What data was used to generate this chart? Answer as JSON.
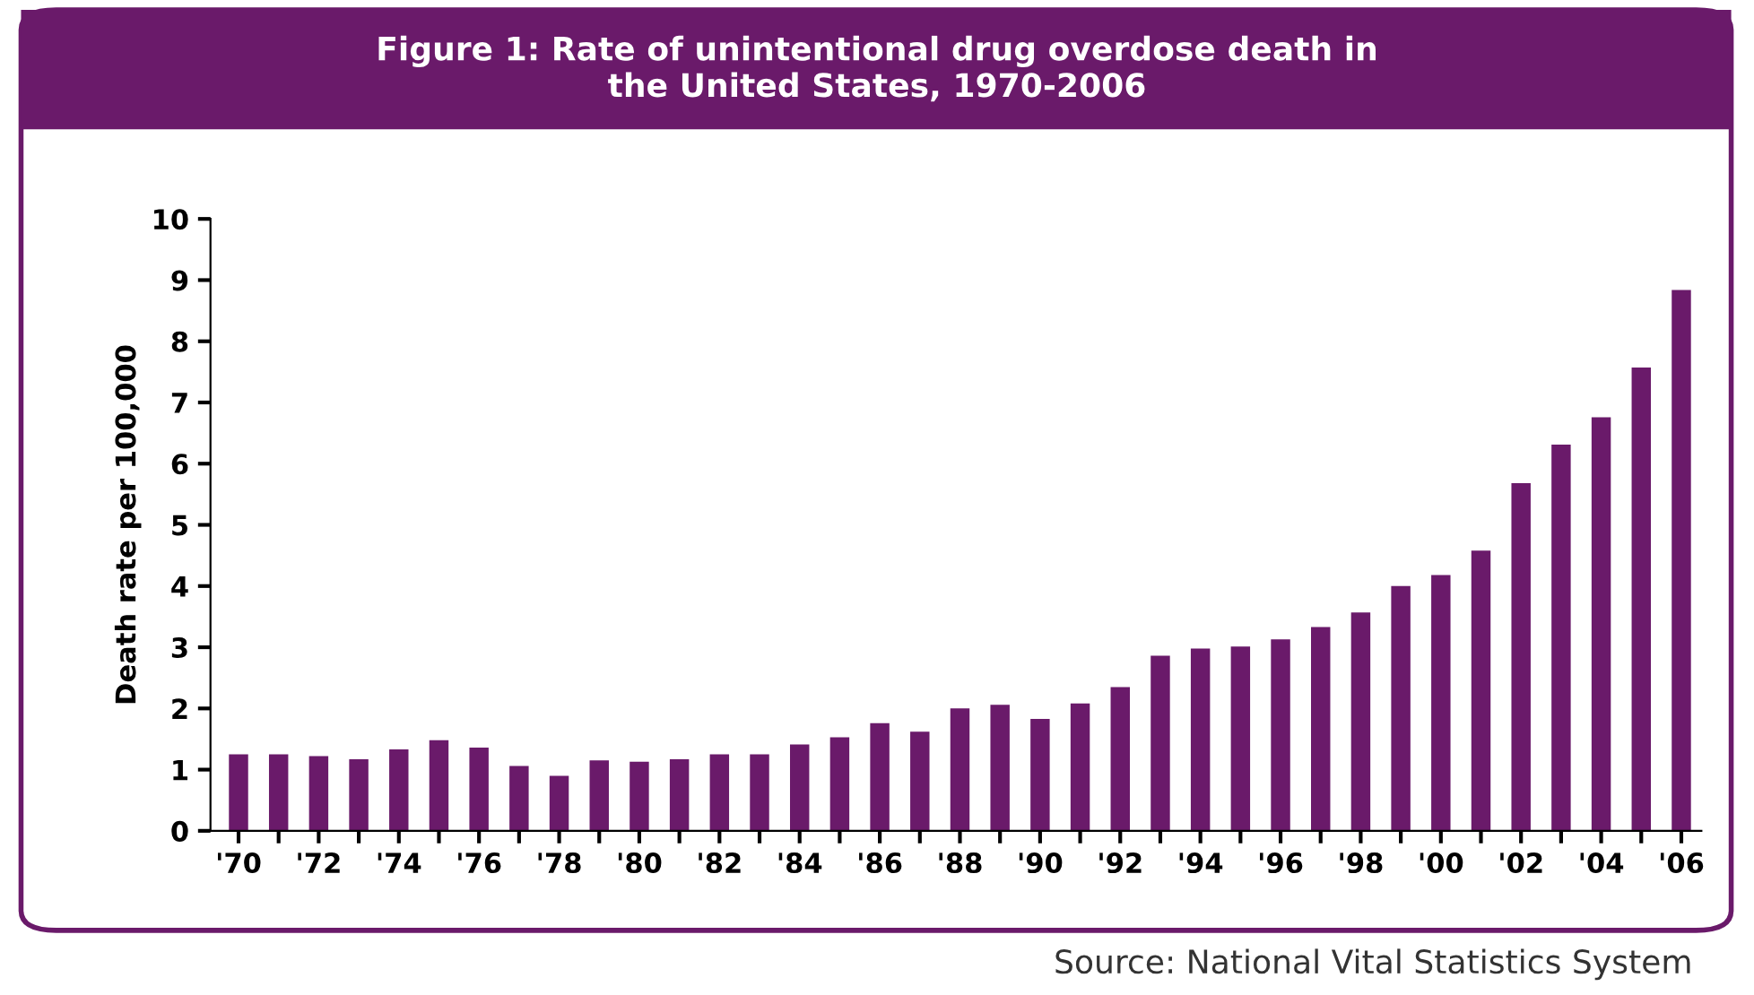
{
  "chart_data": {
    "type": "bar",
    "title": "Figure 1: Rate of unintentional drug overdose death in\nthe United States, 1970-2006",
    "ylabel": "Death rate per 100,000",
    "categories": [
      "'70",
      null,
      "'72",
      null,
      "'74",
      null,
      "'76",
      null,
      "'78",
      null,
      "'80",
      null,
      "'82",
      null,
      "'84",
      null,
      "'86",
      null,
      "'88",
      null,
      "'90",
      null,
      "'92",
      null,
      "'94",
      null,
      "'96",
      null,
      "'98",
      null,
      "'00",
      null,
      "'02",
      null,
      "'04",
      null,
      "'06"
    ],
    "values": [
      1.25,
      1.25,
      1.22,
      1.17,
      1.33,
      1.48,
      1.36,
      1.06,
      0.9,
      1.15,
      1.13,
      1.17,
      1.25,
      1.25,
      1.41,
      1.53,
      1.76,
      1.62,
      2.0,
      2.06,
      1.83,
      2.08,
      2.35,
      2.86,
      2.98,
      3.01,
      3.13,
      3.33,
      3.57,
      4.0,
      4.18,
      4.58,
      5.68,
      6.31,
      6.76,
      7.57,
      8.84
    ],
    "color": "#6a1a6a",
    "ylim": [
      0,
      10
    ],
    "yticks": [
      0,
      1,
      2,
      3,
      4,
      5,
      6,
      7,
      8,
      9,
      10
    ],
    "grid": false,
    "annotations": [
      "Source: National Vital Statistics System"
    ]
  }
}
